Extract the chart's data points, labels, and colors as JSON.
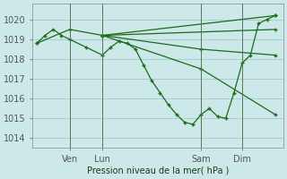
{
  "background_color": "#cce8e8",
  "grid_color": "#a8cece",
  "line_color": "#1a6b1a",
  "marker_color": "#1a6b1a",
  "xlabel": "Pression niveau de la mer( hPa )",
  "ylim": [
    1013.5,
    1020.8
  ],
  "yticks": [
    1014,
    1015,
    1016,
    1017,
    1018,
    1019,
    1020
  ],
  "series": [
    {
      "x": [
        0,
        1,
        2,
        3,
        4,
        6,
        8,
        9,
        10,
        11,
        12,
        13,
        14,
        15,
        16,
        17,
        18,
        19,
        20,
        21,
        22,
        23,
        24,
        25,
        26,
        27,
        28,
        29
      ],
      "y": [
        1018.8,
        1019.2,
        1019.5,
        1019.2,
        1019.0,
        1018.6,
        1018.2,
        1018.6,
        1018.9,
        1018.8,
        1018.5,
        1017.7,
        1016.9,
        1016.3,
        1015.7,
        1015.2,
        1014.8,
        1014.7,
        1015.2,
        1015.5,
        1015.1,
        1015.0,
        1016.3,
        1017.8,
        1018.2,
        1019.8,
        1020.0,
        1020.2
      ]
    },
    {
      "x": [
        0,
        4,
        8,
        29
      ],
      "y": [
        1018.8,
        1019.5,
        1019.2,
        1020.2
      ]
    },
    {
      "x": [
        8,
        29
      ],
      "y": [
        1019.2,
        1019.5
      ]
    },
    {
      "x": [
        8,
        20,
        29
      ],
      "y": [
        1019.2,
        1018.5,
        1018.2
      ]
    },
    {
      "x": [
        8,
        20,
        29
      ],
      "y": [
        1019.2,
        1017.5,
        1015.2
      ]
    }
  ],
  "vlines": [
    {
      "x": 4,
      "label": "Ven"
    },
    {
      "x": 8,
      "label": "Lun"
    },
    {
      "x": 20,
      "label": "Sam"
    },
    {
      "x": 25,
      "label": "Dim"
    }
  ],
  "xtick_positions": [
    4,
    8,
    20,
    25
  ],
  "xtick_labels": [
    "Ven",
    "Lun",
    "Sam",
    "Dim"
  ]
}
